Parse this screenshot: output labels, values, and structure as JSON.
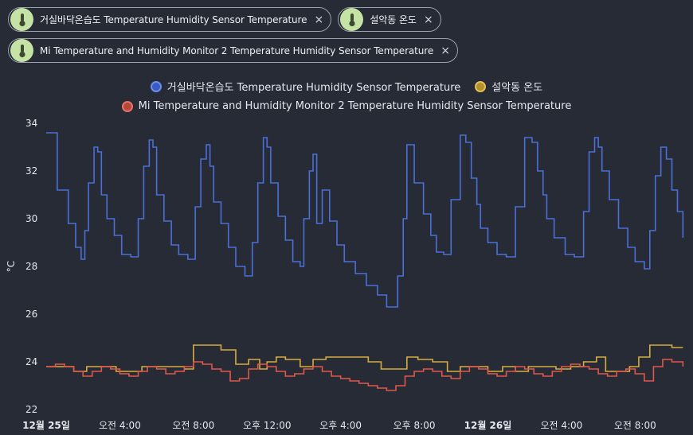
{
  "chips": [
    {
      "label": "거실바닥온습도 Temperature Humidity Sensor Temperature",
      "icon": "thermometer-icon"
    },
    {
      "label": "설악동 온도",
      "icon": "thermometer-icon"
    },
    {
      "label": "Mi Temperature and Humidity Monitor 2 Temperature Humidity Sensor Temperature",
      "icon": "thermometer-icon"
    }
  ],
  "close_glyph": "×",
  "legend": [
    {
      "name": "거실바닥온습도 Temperature Humidity Sensor Temperature",
      "color": "#3a5bc7"
    },
    {
      "name": "설악동 온도",
      "color": "#c6a23e"
    },
    {
      "name": "Mi Temperature and Humidity Monitor 2 Temperature Humidity Sensor Temperature",
      "color": "#cf5448"
    }
  ],
  "chart_data": {
    "type": "line",
    "ylabel": "°C",
    "ylim": [
      22,
      34
    ],
    "y_ticks": [
      "34",
      "32",
      "30",
      "28",
      "26",
      "24",
      "22"
    ],
    "x_ticks": [
      "12월 25일",
      "오전 4:00",
      "오전 8:00",
      "오후 12:00",
      "오후 4:00",
      "오후 8:00",
      "12월 26일",
      "오전 4:00",
      "오전 8:00"
    ],
    "x_tick_bold": [
      true,
      false,
      false,
      false,
      false,
      false,
      true,
      false,
      false
    ],
    "xlim_hours": [
      0,
      34.8
    ],
    "series": [
      {
        "name": "거실바닥온습도 Temperature Humidity Sensor Temperature",
        "color": "#4a6fd6",
        "x": [
          0,
          0.6,
          1.2,
          1.6,
          1.9,
          2.1,
          2.3,
          2.6,
          2.8,
          3.0,
          3.3,
          3.7,
          4.1,
          4.6,
          5.0,
          5.3,
          5.6,
          5.8,
          6.0,
          6.4,
          6.8,
          7.2,
          7.7,
          8.1,
          8.4,
          8.7,
          8.9,
          9.1,
          9.5,
          9.9,
          10.3,
          10.8,
          11.2,
          11.5,
          11.8,
          12.0,
          12.2,
          12.6,
          13.0,
          13.4,
          13.8,
          14.0,
          14.3,
          14.5,
          14.7,
          15.0,
          15.4,
          15.8,
          16.2,
          16.8,
          17.4,
          18.0,
          18.5,
          18.8,
          19.1,
          19.4,
          19.6,
          20.0,
          20.5,
          20.9,
          21.2,
          21.6,
          22.0,
          22.5,
          22.8,
          23.1,
          23.4,
          23.6,
          24.0,
          24.5,
          25.0,
          25.5,
          26.0,
          26.4,
          26.7,
          27.0,
          27.2,
          27.6,
          28.2,
          28.7,
          29.2,
          29.5,
          29.8,
          30.0,
          30.2,
          30.6,
          31.1,
          31.6,
          32.0,
          32.5,
          32.8,
          33.1,
          33.4,
          33.7,
          34.0,
          34.3,
          34.6
        ],
        "y": [
          33.6,
          31.2,
          29.8,
          28.8,
          28.3,
          29.5,
          31.5,
          33.0,
          32.8,
          31.0,
          30.0,
          29.3,
          28.5,
          28.4,
          30.0,
          32.2,
          33.3,
          33.0,
          31.0,
          29.9,
          28.9,
          28.5,
          28.3,
          30.5,
          32.5,
          33.1,
          32.2,
          30.7,
          29.8,
          28.8,
          28.0,
          27.6,
          29.0,
          31.5,
          33.4,
          33.0,
          31.5,
          30.1,
          29.1,
          28.2,
          28.0,
          30.0,
          32.0,
          32.7,
          29.8,
          31.2,
          29.9,
          28.9,
          28.2,
          27.7,
          27.2,
          26.8,
          26.3,
          26.3,
          27.6,
          30.0,
          33.1,
          31.5,
          30.2,
          29.3,
          28.6,
          28.5,
          30.8,
          33.5,
          33.2,
          31.7,
          30.6,
          29.6,
          29.0,
          28.5,
          28.4,
          30.5,
          33.4,
          33.2,
          32.0,
          31.0,
          30.0,
          29.2,
          28.5,
          28.4,
          30.3,
          32.8,
          33.4,
          33.0,
          32.0,
          30.8,
          29.6,
          28.8,
          28.2,
          27.9,
          29.5,
          31.8,
          33.0,
          32.5,
          31.2,
          30.3,
          29.2
        ]
      },
      {
        "name": "설악동 온도",
        "color": "#d6ac40",
        "x": [
          0,
          0.8,
          1.5,
          2.2,
          3.0,
          3.8,
          4.5,
          5.2,
          6.0,
          6.8,
          7.5,
          8.0,
          8.8,
          9.5,
          10.3,
          11.0,
          11.6,
          12.0,
          12.5,
          13.0,
          13.8,
          14.5,
          15.2,
          16.0,
          16.8,
          17.5,
          18.2,
          18.9,
          19.6,
          20.2,
          21.0,
          21.8,
          22.5,
          23.3,
          24.0,
          24.8,
          25.5,
          26.2,
          27.0,
          27.7,
          28.5,
          29.2,
          29.9,
          30.4,
          31.0,
          31.7,
          32.2,
          32.8,
          33.4,
          34.0,
          34.6
        ],
        "y": [
          23.8,
          23.8,
          23.6,
          23.8,
          23.8,
          23.6,
          23.6,
          23.8,
          23.8,
          23.8,
          23.7,
          24.7,
          24.7,
          24.5,
          23.9,
          24.1,
          23.7,
          24.0,
          24.2,
          24.1,
          23.8,
          24.1,
          24.2,
          24.2,
          24.2,
          24.0,
          23.7,
          23.7,
          24.2,
          24.1,
          24.0,
          23.6,
          23.8,
          23.8,
          23.6,
          23.8,
          23.6,
          23.8,
          23.8,
          23.7,
          23.8,
          24.0,
          24.2,
          23.6,
          23.6,
          23.8,
          24.2,
          24.7,
          24.7,
          24.6,
          24.6
        ]
      },
      {
        "name": "Mi Temperature and Humidity Monitor 2 Temperature Humidity Sensor Temperature",
        "color": "#e0574a",
        "x": [
          0,
          0.5,
          1.0,
          1.5,
          2.0,
          2.5,
          3.0,
          3.5,
          4.0,
          4.5,
          5.0,
          5.5,
          6.0,
          6.5,
          7.0,
          7.5,
          8.0,
          8.5,
          9.0,
          9.5,
          10.0,
          10.5,
          11.0,
          11.5,
          12.0,
          12.5,
          13.0,
          13.5,
          14.0,
          14.5,
          15.0,
          15.5,
          16.0,
          16.5,
          17.0,
          17.5,
          18.0,
          18.5,
          19.0,
          19.5,
          20.0,
          20.5,
          21.0,
          21.5,
          22.0,
          22.5,
          23.0,
          23.5,
          24.0,
          24.5,
          25.0,
          25.5,
          26.0,
          26.5,
          27.0,
          27.5,
          28.0,
          28.5,
          29.0,
          29.5,
          30.0,
          30.5,
          31.0,
          31.5,
          32.0,
          32.5,
          33.0,
          33.5,
          34.0,
          34.6
        ],
        "y": [
          23.8,
          23.9,
          23.8,
          23.6,
          23.4,
          23.6,
          23.8,
          23.7,
          23.5,
          23.4,
          23.6,
          23.8,
          23.7,
          23.5,
          23.6,
          23.8,
          24.0,
          23.9,
          23.7,
          23.6,
          23.2,
          23.3,
          23.7,
          23.9,
          23.8,
          23.6,
          23.4,
          23.5,
          23.7,
          23.8,
          23.6,
          23.4,
          23.3,
          23.2,
          23.1,
          23.0,
          22.9,
          22.8,
          23.0,
          23.4,
          23.6,
          23.7,
          23.6,
          23.4,
          23.3,
          23.6,
          23.8,
          23.7,
          23.5,
          23.4,
          23.6,
          23.8,
          23.7,
          23.5,
          23.4,
          23.6,
          23.8,
          23.9,
          23.8,
          23.7,
          23.5,
          23.4,
          23.6,
          23.7,
          23.5,
          23.2,
          23.8,
          24.1,
          24.0,
          23.8
        ]
      }
    ]
  }
}
